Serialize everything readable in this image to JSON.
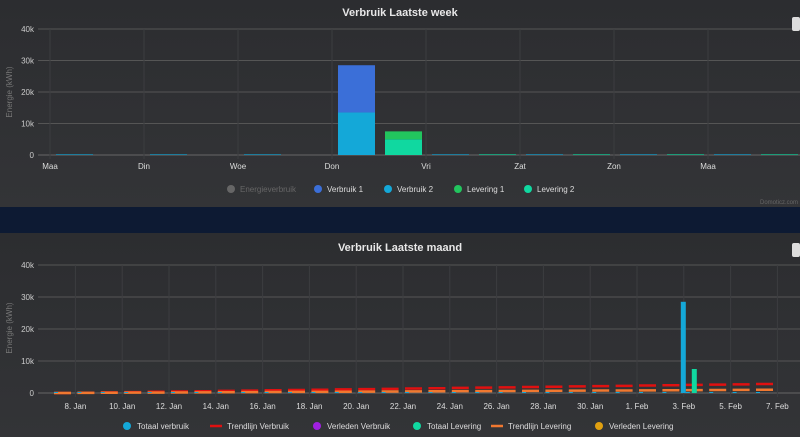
{
  "chart_data": [
    {
      "type": "bar",
      "title": "Verbruik Laatste week",
      "ylabel": "Energie (kWh)",
      "ylim": [
        0,
        40000
      ],
      "yticks": [
        "0",
        "10k",
        "20k",
        "30k",
        "40k"
      ],
      "categories": [
        "Maa",
        "Din",
        "Woe",
        "Don",
        "Vri",
        "Zat",
        "Zon",
        "Maa"
      ],
      "legend": [
        {
          "name": "Energieverbruik",
          "color": "#666666",
          "hidden": true
        },
        {
          "name": "Verbruik 1",
          "color": "#3b6fd8"
        },
        {
          "name": "Verbruik 2",
          "color": "#14a8d8"
        },
        {
          "name": "Levering 1",
          "color": "#22c55e"
        },
        {
          "name": "Levering 2",
          "color": "#10d8a0"
        }
      ],
      "series": [
        {
          "name": "Verbruik 2",
          "stack": "verbruik",
          "values": [
            200,
            200,
            200,
            13500,
            200,
            200,
            200,
            200
          ]
        },
        {
          "name": "Verbruik 1",
          "stack": "verbruik",
          "values": [
            0,
            0,
            0,
            15000,
            0,
            0,
            0,
            0
          ]
        },
        {
          "name": "Levering 2",
          "stack": "levering",
          "values": [
            0,
            0,
            0,
            5000,
            200,
            200,
            200,
            200
          ]
        },
        {
          "name": "Levering 1",
          "stack": "levering",
          "values": [
            0,
            0,
            0,
            2500,
            0,
            0,
            0,
            0
          ]
        }
      ],
      "credit": "Domoticz.com"
    },
    {
      "type": "bar",
      "title": "Verbruik Laatste maand",
      "ylabel": "Energie (kWh)",
      "ylim": [
        0,
        40000
      ],
      "yticks": [
        "0",
        "10k",
        "20k",
        "30k",
        "40k"
      ],
      "xticks": [
        "8. Jan",
        "10. Jan",
        "12. Jan",
        "14. Jan",
        "16. Jan",
        "18. Jan",
        "20. Jan",
        "22. Jan",
        "24. Jan",
        "26. Jan",
        "28. Jan",
        "30. Jan",
        "1. Feb",
        "3. Feb",
        "5. Feb",
        "7. Feb"
      ],
      "legend": [
        {
          "name": "Totaal verbruik",
          "color": "#14a8d8",
          "shape": "dot"
        },
        {
          "name": "Trendlijn Verbruik",
          "color": "#e01010",
          "shape": "line"
        },
        {
          "name": "Verleden Verbruik",
          "color": "#a020e0",
          "shape": "dot"
        },
        {
          "name": "Totaal Levering",
          "color": "#10d8a0",
          "shape": "dot"
        },
        {
          "name": "Trendlijn Levering",
          "color": "#f07830",
          "shape": "line"
        },
        {
          "name": "Verleden Levering",
          "color": "#e0a010",
          "shape": "dot"
        }
      ],
      "totaal_verbruik": {
        "3. Feb": 28500
      },
      "totaal_levering": {
        "3. Feb": 7500
      },
      "trend_verbruik_range": [
        0,
        2800
      ],
      "trend_levering_range": [
        0,
        1000
      ],
      "days": 32
    }
  ]
}
